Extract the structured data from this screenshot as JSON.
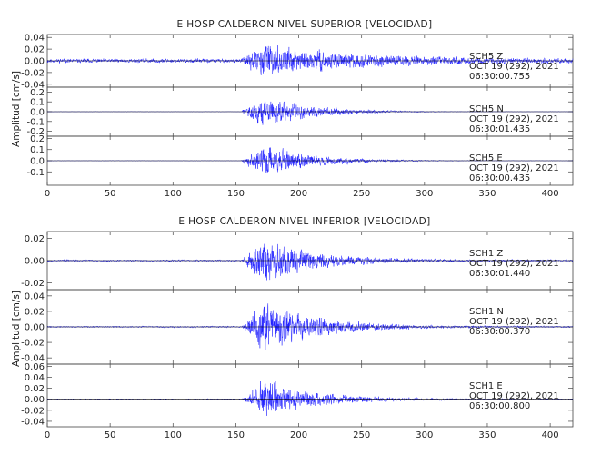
{
  "chart_data": [
    {
      "type": "line",
      "title": "E HOSP CALDERON NIVEL SUPERIOR [VELOCIDAD]",
      "ylabel": "Amplitud [cm/s]",
      "xlim": [
        0,
        418
      ],
      "xticks": [
        "0",
        "50",
        "100",
        "150",
        "200",
        "250",
        "300",
        "350",
        "400"
      ],
      "line_color": "#1a1aff",
      "panels": [
        {
          "ylim": [
            -0.045,
            0.045
          ],
          "yticks": [
            "0.04",
            "0.02",
            "0.00",
            "-0.02",
            "-0.04"
          ],
          "yticks_values": [
            0.04,
            0.02,
            0.0,
            -0.02,
            -0.04
          ],
          "annotation": [
            "SCH5   Z",
            "OCT 19 (292), 2021",
            "06:30:00.755"
          ],
          "noise": 0.0045,
          "peak": 0.03,
          "peak_time": 172,
          "onset": 154,
          "coda": 70,
          "seed": 11
        },
        {
          "ylim": [
            -0.25,
            0.25
          ],
          "yticks": [
            "0.2",
            "0.1",
            "0.0",
            "-0.1",
            "-0.2"
          ],
          "yticks_values": [
            0.2,
            0.1,
            0.0,
            -0.1,
            -0.2
          ],
          "annotation": [
            "SCH5   N",
            "OCT 19 (292), 2021",
            "06:30:01.435"
          ],
          "noise": 0.003,
          "peak": 0.2,
          "peak_time": 172,
          "onset": 154,
          "coda": 38,
          "seed": 23
        },
        {
          "ylim": [
            -0.22,
            0.22
          ],
          "yticks": [
            "0.2",
            "0.1",
            "0.0",
            "-0.1"
          ],
          "yticks_values": [
            0.2,
            0.1,
            0.0,
            -0.1
          ],
          "annotation": [
            "SCH5   E",
            "OCT 19 (292), 2021",
            "06:30:00.435"
          ],
          "noise": 0.003,
          "peak": 0.18,
          "peak_time": 172,
          "onset": 154,
          "coda": 38,
          "seed": 37
        }
      ]
    },
    {
      "type": "line",
      "title": "E HOSP CALDERON NIVEL INFERIOR [VELOCIDAD]",
      "ylabel": "Amplitud [cm/s]",
      "xlim": [
        0,
        418
      ],
      "xticks": [
        "0",
        "50",
        "100",
        "150",
        "200",
        "250",
        "300",
        "350",
        "400"
      ],
      "line_color": "#1a1aff",
      "panels": [
        {
          "ylim": [
            -0.026,
            0.026
          ],
          "yticks": [
            "0.02",
            "0.00",
            "-0.02"
          ],
          "yticks_values": [
            0.02,
            0.0,
            -0.02
          ],
          "annotation": [
            "SCH1   Z",
            "OCT 19 (292), 2021",
            "06:30:01.440"
          ],
          "noise": 0.0012,
          "peak": 0.024,
          "peak_time": 173,
          "onset": 155,
          "coda": 40,
          "seed": 53
        },
        {
          "ylim": [
            -0.048,
            0.048
          ],
          "yticks": [
            "0.04",
            "0.02",
            "0.00",
            "-0.02",
            "-0.04"
          ],
          "yticks_values": [
            0.04,
            0.02,
            0.0,
            -0.02,
            -0.04
          ],
          "annotation": [
            "SCH1   N",
            "OCT 19 (292), 2021",
            "06:30:00.370"
          ],
          "noise": 0.0015,
          "peak": 0.04,
          "peak_time": 173,
          "onset": 155,
          "coda": 40,
          "seed": 71
        },
        {
          "ylim": [
            -0.05,
            0.064
          ],
          "yticks": [
            "0.06",
            "0.04",
            "0.02",
            "0.00",
            "-0.02",
            "-0.04"
          ],
          "yticks_values": [
            0.06,
            0.04,
            0.02,
            0.0,
            -0.02,
            -0.04
          ],
          "annotation": [
            "SCH1   E",
            "OCT 19 (292), 2021",
            "06:30:00.800"
          ],
          "noise": 0.0015,
          "peak": 0.042,
          "peak_time": 173,
          "onset": 155,
          "coda": 40,
          "seed": 89
        }
      ]
    }
  ]
}
